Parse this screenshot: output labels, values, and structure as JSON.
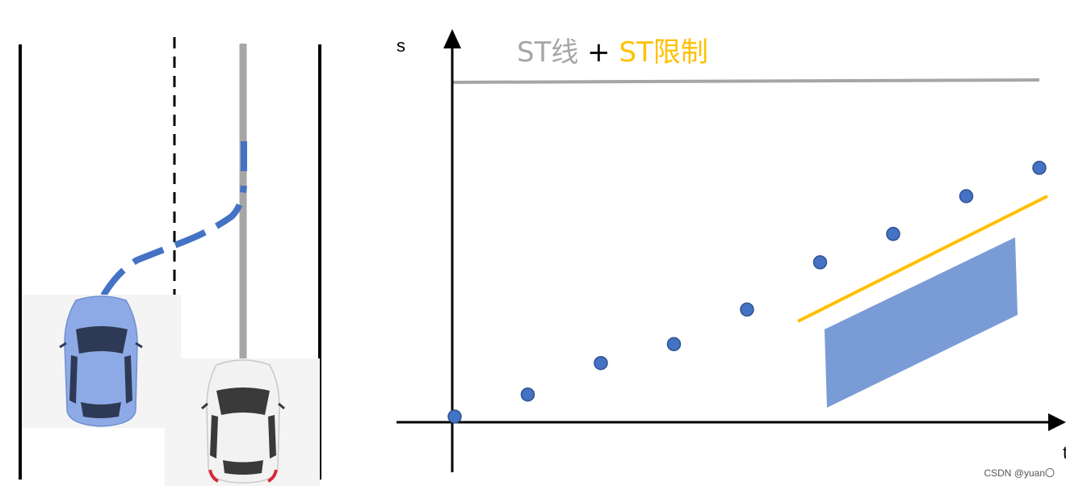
{
  "title": {
    "part1": "ST线",
    "plus": " + ",
    "part2": "ST限制"
  },
  "axes": {
    "y_label": "s",
    "x_label": "t"
  },
  "watermark": "CSDN @yuan〇",
  "colors": {
    "st_line": "#a6a6a6",
    "st_limit": "#ffc000",
    "points": "#4472c4",
    "obstacle_region": "#7a9cd6",
    "path": "#4472c4",
    "ego_car": "#8eaae6",
    "other_car": "#f2f2f2"
  },
  "chart_data": {
    "type": "scatter",
    "title": "ST线 + ST限制",
    "xlabel": "t",
    "ylabel": "s",
    "grid": false,
    "series": [
      {
        "name": "ST线",
        "values": [
          {
            "x": 0,
            "y": 0
          },
          {
            "x": 1,
            "y": 0.07
          },
          {
            "x": 2,
            "y": 0.17
          },
          {
            "x": 3,
            "y": 0.23
          },
          {
            "x": 4,
            "y": 0.34
          },
          {
            "x": 5,
            "y": 0.49
          },
          {
            "x": 6,
            "y": 0.58
          },
          {
            "x": 7,
            "y": 0.7
          },
          {
            "x": 8,
            "y": 0.79
          }
        ]
      }
    ]
  }
}
